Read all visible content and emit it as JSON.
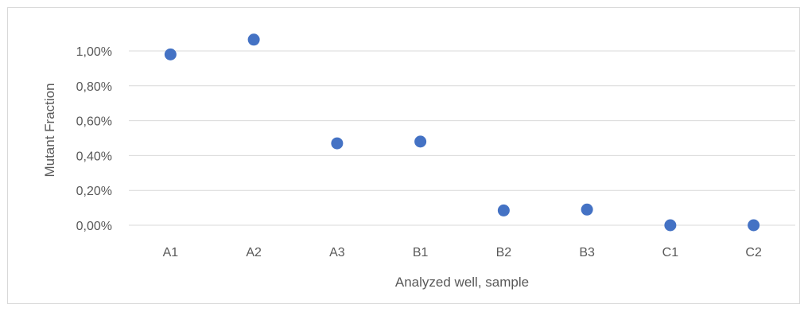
{
  "chart_data": {
    "type": "scatter",
    "title": "",
    "xlabel": "Analyzed well, sample",
    "ylabel": "Mutant Fraction",
    "categories": [
      "A1",
      "A2",
      "A3",
      "B1",
      "B2",
      "B3",
      "C1",
      "C2"
    ],
    "values": [
      0.98,
      1.065,
      0.47,
      0.48,
      0.085,
      0.09,
      0.0,
      0.0
    ],
    "value_unit": "%",
    "ylim": [
      0,
      1.2
    ],
    "yticks": [
      0,
      0.2,
      0.4,
      0.6,
      0.8,
      1.0
    ],
    "ytick_labels": [
      "0,00%",
      "0,20%",
      "0,40%",
      "0,60%",
      "0,80%",
      "1,00%"
    ],
    "grid": true,
    "legend": "none",
    "marker_color": "#4472c4",
    "gridline_color": "#d9d9d9"
  }
}
